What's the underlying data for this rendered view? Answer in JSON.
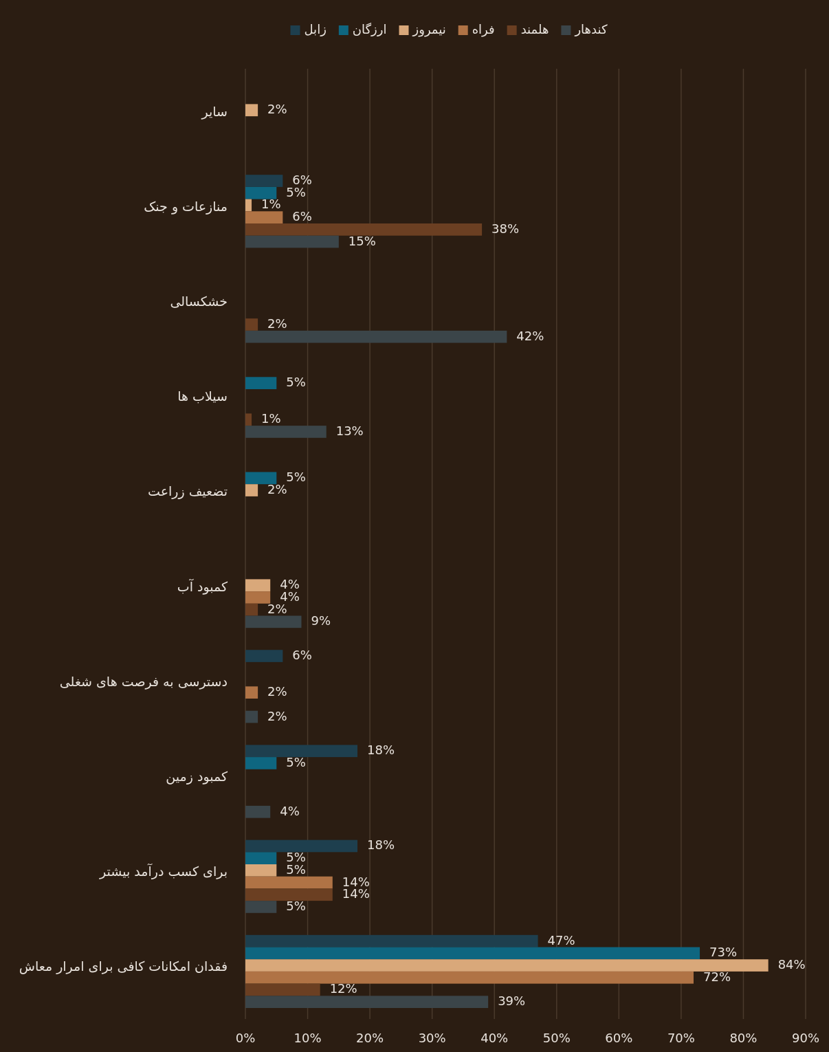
{
  "chart_data": {
    "type": "bar",
    "orientation": "horizontal",
    "categories": [
      "سایر",
      "منازعات و جنک",
      "خشکسالی",
      "سیلاب ها",
      "تضعیف زراعت",
      "کمبود آب",
      "دسترسی به فرصت های شغلی",
      "کمبود زمین",
      "برای کسب درآمد بیشتر",
      "فقدان امکانات کافی برای امرار معاش"
    ],
    "series": [
      {
        "name": "زابل",
        "color": "#1e3f4e",
        "values": [
          null,
          6,
          null,
          null,
          null,
          null,
          6,
          18,
          18,
          47
        ],
        "value_labels": [
          null,
          "6%",
          null,
          null,
          null,
          null,
          "6%",
          "18%",
          "18%",
          "47%"
        ]
      },
      {
        "name": "ارزگان",
        "color": "#0e6680",
        "values": [
          null,
          5,
          null,
          5,
          5,
          null,
          null,
          5,
          5,
          73
        ],
        "value_labels": [
          null,
          "5%",
          null,
          "5%",
          "5%",
          null,
          null,
          "5%",
          "5%",
          "73%"
        ]
      },
      {
        "name": "نیمروز",
        "color": "#d9a87a",
        "values": [
          2,
          1,
          null,
          null,
          2,
          4,
          null,
          null,
          5,
          84
        ],
        "value_labels": [
          "2%",
          "1%",
          null,
          null,
          "2%",
          "4%",
          null,
          null,
          "5%",
          "84%"
        ]
      },
      {
        "name": "فراه",
        "color": "#b07345",
        "values": [
          null,
          6,
          null,
          null,
          null,
          4,
          2,
          null,
          14,
          72
        ],
        "value_labels": [
          null,
          "6%",
          null,
          null,
          null,
          "4%",
          "2%",
          null,
          "14%",
          "72%"
        ]
      },
      {
        "name": "هلمند",
        "color": "#6b3f22",
        "values": [
          null,
          38,
          2,
          1,
          null,
          2,
          null,
          null,
          14,
          12
        ],
        "value_labels": [
          null,
          "38%",
          "2%",
          "1%",
          null,
          "2%",
          null,
          null,
          "14%",
          "12%"
        ]
      },
      {
        "name": "کندهار",
        "color": "#3b4549",
        "values": [
          null,
          15,
          42,
          13,
          null,
          9,
          2,
          4,
          5,
          39
        ],
        "value_labels": [
          null,
          "15%",
          "42%",
          "13%",
          null,
          "9%",
          "2%",
          "4%",
          "5%",
          "39%"
        ]
      }
    ],
    "xlim": [
      0,
      90
    ],
    "xticks": [
      {
        "value": 0,
        "label": "0%"
      },
      {
        "value": 10,
        "label": "10%"
      },
      {
        "value": 20,
        "label": "20%"
      },
      {
        "value": 30,
        "label": "30%"
      },
      {
        "value": 40,
        "label": "40%"
      },
      {
        "value": 50,
        "label": "50%"
      },
      {
        "value": 60,
        "label": "60%"
      },
      {
        "value": 70,
        "label": "70%"
      },
      {
        "value": 80,
        "label": "80%"
      },
      {
        "value": 90,
        "label": "90%"
      }
    ],
    "grid": "x",
    "legend": "top"
  }
}
